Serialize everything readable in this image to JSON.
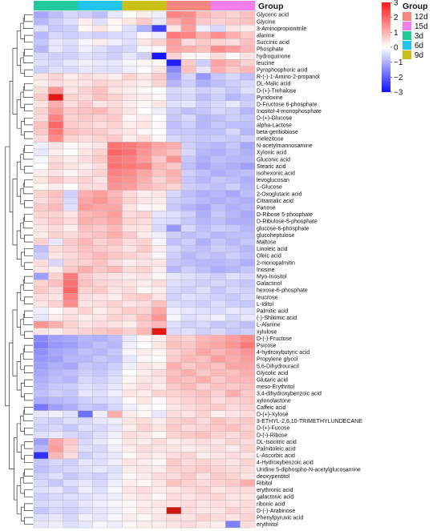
{
  "chart_data": {
    "type": "heatmap",
    "title": "",
    "group_header": "Group",
    "legend_title": "Group",
    "colorbar": {
      "min": -3,
      "max": 3,
      "ticks": [
        3,
        2,
        1,
        0,
        -1,
        -2,
        -3
      ],
      "low_color": "#1010ff",
      "mid_color": "#ffffff",
      "high_color": "#ff1a1a"
    },
    "groups": [
      {
        "name": "3d",
        "color": "#22c99a",
        "columns": 3
      },
      {
        "name": "6d",
        "color": "#22c3ee",
        "columns": 3
      },
      {
        "name": "9d",
        "color": "#c9c11a",
        "columns": 3
      },
      {
        "name": "12d",
        "color": "#f5877f",
        "columns": 3
      },
      {
        "name": "15d",
        "color": "#f47fea",
        "columns": 3
      }
    ],
    "legend_order": [
      "12d",
      "15d",
      "3d",
      "6d",
      "9d"
    ],
    "rows": [
      "Glyceric acid",
      "Glycine",
      "3-Aminopropionitrile",
      "alanine",
      "Succinic acid",
      "Phosphate",
      "hydroquinone",
      "leucine",
      "Pyrophosphoric acid",
      "R-(-)-1-Amino-2-propanol",
      "DL-Malic acid",
      "D-(+)-Trehalose",
      "Pyridoxine",
      "D-Fructose 6-phosphate",
      "Inositol-4-monophosphate",
      "D-(+)-Glucose",
      "alpha-Lactose",
      "beta-gentiobiose",
      "melezitose",
      "N-acetylmannosamine",
      "Xylonic acid",
      "Gluconic acid",
      "Stearic acid",
      "isohexonic acid",
      "levoglucosan",
      "L-Glucose",
      "2-Oxoglutaric acid",
      "Citramalic acid",
      "Panose",
      "D-Ribose 5-phosphate",
      "D-Ribulose-5-phosphate",
      "glucose-6-phosphate",
      "glucoheptulose",
      "Maltose",
      "Linoleic acid",
      "Oleic acid",
      "2-monopalmitin",
      "Inosine",
      "Myo-Inositol",
      "Galactinol",
      "hexose-6-phosphate",
      "leucrose",
      "L-Iditol",
      "Palmitic acid",
      "(-)-Shikimic acid",
      "L-Alanine",
      "xylulose",
      "D-(-)-Fructose",
      "Psicose",
      "4-hydroxybutyric acid",
      "Propylene glycol",
      "5,6-Dihydrouracil",
      "Glycolic acid",
      "Glutaric acid",
      "meso-Erythritol",
      "3,4-dihydroxybenzoic acid",
      "xylonolactone",
      "Caffeic acid",
      "D-(+)-Xylose",
      "3-ETHYL-2,6,10-TRIMETHYLUNDECANE",
      "D-(+)-Fucose",
      "D-(-)-Ribose",
      "DL-Isocitric acid",
      "Palmitoleic acid",
      "L-Ascorbic acid",
      "4-Hydroxybenzoic acid",
      "Uridine 5-diphospho-N-acetylglucosamine",
      "deoxypentitol",
      "Ribitol",
      "erythronic acid",
      "galactonic acid",
      "ribonic acid",
      "D-(-)-Arabinose",
      "Phenylpyruvic acid",
      "erythritol"
    ],
    "values": [
      [
        -1.1,
        -0.8,
        -0.5,
        -0.6,
        -0.8,
        -0.3,
        0.0,
        0.2,
        -0.2,
        1.4,
        1.3,
        0.8,
        0.6,
        0.5,
        0.7
      ],
      [
        -0.9,
        -0.6,
        -0.4,
        0.2,
        -0.4,
        0.1,
        0.3,
        0.6,
        -0.3,
        0.9,
        1.2,
        0.6,
        0.5,
        0.6,
        0.7
      ],
      [
        -0.4,
        -0.7,
        -0.6,
        0.1,
        0.3,
        0.1,
        -0.4,
        -1.0,
        -2.4,
        0.3,
        1.1,
        -0.2,
        -0.5,
        0.3,
        0.2
      ],
      [
        -0.9,
        -0.5,
        -0.6,
        -0.5,
        -0.6,
        -0.5,
        -0.4,
        0.1,
        -0.2,
        1.5,
        1.4,
        0.9,
        1.3,
        0.9,
        0.6
      ],
      [
        -0.7,
        -0.3,
        -0.4,
        -0.1,
        0.2,
        -0.2,
        -0.4,
        0.3,
        0.5,
        1.1,
        0.4,
        0.6,
        0.5,
        0.4,
        0.7
      ],
      [
        -0.9,
        -0.3,
        -0.5,
        -0.2,
        -0.4,
        -0.6,
        -0.5,
        -0.1,
        0.1,
        1.0,
        0.9,
        0.7,
        1.3,
        1.1,
        0.8
      ],
      [
        -0.5,
        -0.6,
        -0.6,
        -0.4,
        -0.5,
        -0.6,
        -0.3,
        -0.6,
        -2.9,
        0.5,
        0.1,
        0.1,
        0.4,
        0.0,
        0.3
      ],
      [
        -0.4,
        -0.5,
        -0.3,
        -0.2,
        -0.3,
        -0.3,
        -0.1,
        0.1,
        0.1,
        -2.8,
        0.6,
        -0.6,
        1.0,
        0.8,
        0.5
      ],
      [
        -0.6,
        -0.4,
        -0.5,
        -0.3,
        -0.4,
        -0.4,
        -0.2,
        0.0,
        0.3,
        -1.5,
        0.7,
        -0.3,
        0.9,
        0.6,
        0.8
      ],
      [
        0.3,
        0.5,
        0.2,
        0.4,
        0.3,
        0.2,
        0.5,
        0.3,
        0.6,
        -1.2,
        -0.5,
        -1.3,
        -0.7,
        -0.5,
        -0.8
      ],
      [
        0.2,
        0.4,
        0.3,
        0.3,
        0.5,
        0.4,
        0.3,
        0.2,
        0.5,
        -0.9,
        -0.6,
        -1.0,
        -0.8,
        -0.6,
        -0.5
      ],
      [
        0.4,
        1.2,
        0.3,
        0.5,
        0.7,
        0.3,
        0.2,
        0.1,
        0.0,
        -0.5,
        -0.4,
        -0.6,
        -0.5,
        -0.7,
        -0.4
      ],
      [
        0.6,
        2.6,
        0.5,
        0.4,
        0.7,
        0.5,
        0.3,
        0.2,
        0.1,
        -0.6,
        -0.5,
        -0.8,
        -0.6,
        -0.9,
        -0.7
      ],
      [
        0.3,
        0.9,
        0.4,
        0.6,
        0.3,
        0.4,
        0.2,
        0.1,
        0.3,
        -0.4,
        -0.3,
        -0.6,
        -0.5,
        -0.3,
        -0.6
      ],
      [
        0.5,
        1.1,
        0.6,
        0.7,
        0.8,
        0.5,
        0.3,
        0.0,
        -0.2,
        -0.6,
        -0.8,
        -0.7,
        -0.5,
        -0.6,
        -0.9
      ],
      [
        0.4,
        1.4,
        0.5,
        0.6,
        0.5,
        0.6,
        0.1,
        0.2,
        0.0,
        -0.7,
        -0.5,
        -0.9,
        -0.8,
        -0.6,
        -0.7
      ],
      [
        0.7,
        1.7,
        0.6,
        0.5,
        0.4,
        0.5,
        0.2,
        0.3,
        0.1,
        -0.8,
        -0.6,
        -0.9,
        -0.7,
        -0.8,
        -0.8
      ],
      [
        0.6,
        1.5,
        0.7,
        0.6,
        0.6,
        0.4,
        0.3,
        0.1,
        0.0,
        -0.7,
        -0.7,
        -0.8,
        -0.8,
        -0.5,
        -0.9
      ],
      [
        0.4,
        1.3,
        0.5,
        0.4,
        0.5,
        0.6,
        0.2,
        0.4,
        0.1,
        -0.5,
        -0.6,
        -0.7,
        -0.6,
        -0.7,
        -0.6
      ],
      [
        -0.2,
        0.3,
        0.1,
        0.2,
        0.3,
        1.6,
        1.5,
        1.3,
        1.0,
        0.9,
        -0.6,
        -0.8,
        -0.9,
        -0.7,
        -1.1
      ],
      [
        -0.3,
        0.2,
        0.0,
        0.3,
        0.5,
        1.7,
        1.6,
        1.2,
        0.9,
        0.7,
        -0.5,
        -0.9,
        -1.0,
        -0.8,
        -1.0
      ],
      [
        -0.1,
        0.4,
        0.2,
        0.4,
        0.6,
        1.5,
        1.4,
        1.1,
        0.6,
        1.2,
        -0.7,
        -1.0,
        -0.8,
        -0.9,
        -0.9
      ],
      [
        0.0,
        0.5,
        0.3,
        0.2,
        0.4,
        1.6,
        1.5,
        1.4,
        0.8,
        0.6,
        -0.8,
        -1.1,
        -0.9,
        -1.0,
        -1.2
      ],
      [
        0.2,
        0.3,
        0.1,
        0.3,
        0.5,
        1.4,
        1.3,
        1.0,
        0.7,
        0.9,
        -0.6,
        -0.8,
        -1.0,
        -0.9,
        -0.8
      ],
      [
        0.3,
        0.6,
        0.4,
        0.5,
        0.3,
        1.3,
        1.2,
        0.9,
        0.5,
        0.8,
        -0.7,
        -0.9,
        -0.7,
        -0.8,
        -1.0
      ],
      [
        0.1,
        0.2,
        0.0,
        0.4,
        0.4,
        1.2,
        1.1,
        0.8,
        0.6,
        0.5,
        -0.6,
        -0.7,
        -0.8,
        -0.6,
        -0.9
      ],
      [
        0.5,
        0.7,
        -0.6,
        0.9,
        1.1,
        0.8,
        0.4,
        0.2,
        0.3,
        -0.5,
        -0.8,
        -1.0,
        -0.9,
        -1.1,
        -0.8
      ],
      [
        0.4,
        0.6,
        -0.5,
        1.0,
        1.2,
        0.9,
        0.5,
        0.3,
        0.2,
        -0.6,
        -0.7,
        -0.9,
        -1.0,
        -0.9,
        -1.0
      ],
      [
        0.6,
        0.8,
        -0.4,
        1.1,
        1.0,
        1.0,
        0.3,
        0.1,
        0.1,
        -0.7,
        -0.9,
        -1.1,
        -0.8,
        -1.0,
        -0.9
      ],
      [
        0.5,
        0.5,
        0.3,
        0.8,
        0.9,
        1.1,
        0.4,
        0.5,
        -0.3,
        -0.4,
        -0.6,
        -1.0,
        -0.7,
        -0.9,
        -1.1
      ],
      [
        0.4,
        0.6,
        0.4,
        0.9,
        0.8,
        1.0,
        0.5,
        0.4,
        -0.4,
        -0.5,
        -0.7,
        -0.9,
        -0.8,
        -1.0,
        -1.0
      ],
      [
        0.3,
        0.4,
        0.2,
        0.7,
        0.6,
        0.8,
        0.3,
        0.3,
        -0.5,
        -1.3,
        -0.5,
        -0.8,
        -0.6,
        -0.7,
        -0.9
      ],
      [
        0.2,
        0.5,
        0.4,
        0.6,
        0.7,
        0.9,
        0.6,
        0.2,
        -0.2,
        -0.6,
        -0.8,
        -0.7,
        -0.9,
        -0.8,
        -0.8
      ],
      [
        0.5,
        -0.3,
        0.6,
        0.8,
        0.5,
        0.7,
        0.4,
        0.5,
        -0.1,
        -0.8,
        -0.6,
        -1.0,
        -0.7,
        -0.9,
        -0.7
      ],
      [
        -0.8,
        0.4,
        0.5,
        0.7,
        0.6,
        0.5,
        0.3,
        0.6,
        0.2,
        -0.5,
        -0.7,
        -0.8,
        -0.6,
        -0.7,
        -0.9
      ],
      [
        -0.6,
        0.3,
        0.4,
        0.6,
        0.8,
        0.6,
        0.5,
        0.4,
        0.1,
        -0.6,
        -0.9,
        -0.7,
        -0.8,
        -0.6,
        -0.8
      ],
      [
        0.4,
        -0.5,
        0.5,
        0.5,
        0.7,
        0.4,
        0.2,
        0.3,
        0.3,
        -0.7,
        -0.8,
        -0.9,
        -0.9,
        -0.8,
        -1.0
      ],
      [
        0.3,
        0.2,
        0.6,
        0.9,
        0.6,
        0.8,
        0.4,
        0.5,
        0.2,
        -0.9,
        -0.6,
        -0.8,
        -1.0,
        -0.9,
        -0.7
      ],
      [
        -1.2,
        0.5,
        1.5,
        0.6,
        0.4,
        0.3,
        0.2,
        0.3,
        0.1,
        -0.3,
        -0.4,
        -0.5,
        -0.6,
        -0.4,
        -0.5
      ],
      [
        0.5,
        0.7,
        1.6,
        0.7,
        0.5,
        0.4,
        0.3,
        0.2,
        0.4,
        -0.4,
        -0.5,
        -0.6,
        -0.5,
        -0.6,
        -0.7
      ],
      [
        0.6,
        0.4,
        1.7,
        0.5,
        0.6,
        0.3,
        0.4,
        0.1,
        0.2,
        -0.5,
        -0.6,
        -0.4,
        -0.7,
        -0.5,
        -0.6
      ],
      [
        0.4,
        0.3,
        1.4,
        0.4,
        0.3,
        0.2,
        0.5,
        0.6,
        0.3,
        -0.6,
        -0.4,
        -0.5,
        -0.6,
        -0.7,
        -0.5
      ],
      [
        0.3,
        0.5,
        1.3,
        0.3,
        0.4,
        0.5,
        0.3,
        0.4,
        0.7,
        -0.4,
        -0.5,
        -0.6,
        -0.4,
        -0.6,
        -0.7
      ],
      [
        -0.2,
        0.1,
        0.3,
        0.5,
        0.2,
        0.4,
        0.6,
        0.5,
        1.0,
        -0.2,
        -0.3,
        -0.4,
        -0.5,
        -0.3,
        -0.4
      ],
      [
        -0.3,
        0.2,
        0.4,
        0.2,
        0.3,
        0.5,
        0.4,
        0.7,
        1.2,
        -0.1,
        -0.4,
        -0.3,
        -0.2,
        -0.5,
        -0.3
      ],
      [
        1.2,
        0.9,
        0.5,
        0.3,
        0.4,
        0.3,
        0.2,
        0.6,
        0.8,
        -0.4,
        -0.6,
        -0.5,
        -0.7,
        -0.6,
        -0.8
      ],
      [
        0.3,
        0.2,
        0.4,
        0.5,
        0.6,
        0.7,
        0.5,
        0.8,
        2.6,
        -0.5,
        -0.4,
        -0.6,
        -0.5,
        -0.7,
        -0.6
      ],
      [
        -1.5,
        -1.2,
        -1.1,
        -0.9,
        -1.0,
        -0.8,
        -0.3,
        0.1,
        0.2,
        0.6,
        0.5,
        0.8,
        0.9,
        1.1,
        1.3
      ],
      [
        -1.6,
        -1.3,
        -1.2,
        -1.0,
        -0.8,
        -0.9,
        -0.2,
        0.0,
        0.3,
        0.7,
        0.6,
        0.9,
        1.0,
        1.2,
        1.5
      ],
      [
        -1.4,
        -1.1,
        -1.0,
        -0.8,
        -0.9,
        -0.7,
        -0.1,
        0.2,
        0.1,
        0.5,
        0.7,
        1.0,
        0.8,
        1.0,
        1.2
      ],
      [
        -1.3,
        -1.2,
        -0.9,
        -0.9,
        -0.7,
        -0.8,
        -0.3,
        0.1,
        0.0,
        0.6,
        0.8,
        0.7,
        1.1,
        0.9,
        1.1
      ],
      [
        -1.2,
        -1.0,
        -1.1,
        -0.7,
        -0.8,
        -0.6,
        -0.2,
        0.3,
        0.2,
        0.9,
        0.6,
        0.8,
        0.7,
        1.0,
        1.0
      ],
      [
        -1.1,
        -0.9,
        -0.8,
        -0.6,
        -0.7,
        -0.5,
        0.0,
        0.2,
        0.4,
        0.7,
        0.9,
        0.6,
        0.8,
        0.7,
        0.9
      ],
      [
        -1.0,
        -0.8,
        -0.9,
        -0.5,
        -0.6,
        -0.4,
        0.1,
        0.3,
        0.3,
        0.8,
        0.7,
        0.9,
        0.6,
        0.8,
        0.8
      ],
      [
        -0.9,
        -0.7,
        -0.6,
        -0.4,
        -0.5,
        -0.3,
        0.2,
        0.4,
        0.2,
        0.6,
        0.8,
        0.5,
        0.7,
        0.6,
        0.7
      ],
      [
        -0.8,
        -0.6,
        -0.7,
        -0.3,
        -0.4,
        -0.2,
        0.3,
        0.2,
        0.5,
        0.5,
        0.6,
        0.7,
        0.5,
        0.9,
        0.6
      ],
      [
        -1.0,
        -0.9,
        -0.8,
        -0.6,
        -0.5,
        -0.4,
        0.1,
        0.3,
        0.1,
        0.4,
        0.5,
        0.6,
        0.4,
        0.5,
        0.6
      ],
      [
        -1.7,
        -1.2,
        -1.0,
        -0.7,
        -0.8,
        -0.5,
        -0.2,
        0.1,
        0.0,
        0.3,
        0.4,
        0.5,
        0.6,
        0.4,
        0.5
      ],
      [
        -0.3,
        -0.2,
        -0.4,
        -1.8,
        -0.2,
        0.9,
        0.2,
        0.1,
        -0.3,
        0.4,
        0.3,
        0.5,
        0.2,
        0.3,
        0.4
      ],
      [
        -0.5,
        -0.6,
        -0.4,
        -0.5,
        -0.3,
        -0.2,
        0.3,
        0.4,
        0.2,
        0.5,
        0.6,
        0.4,
        0.7,
        0.5,
        0.6
      ],
      [
        -0.6,
        -0.5,
        -0.7,
        -0.4,
        -0.5,
        -0.3,
        0.2,
        0.5,
        0.3,
        0.6,
        0.4,
        0.5,
        0.6,
        0.7,
        0.5
      ],
      [
        -0.4,
        -0.3,
        -0.5,
        -0.6,
        -0.4,
        -0.2,
        0.4,
        0.3,
        0.1,
        0.5,
        0.6,
        0.7,
        0.5,
        0.4,
        0.6
      ],
      [
        -1.2,
        1.0,
        0.6,
        -0.5,
        -0.3,
        -0.1,
        0.3,
        0.2,
        0.4,
        0.2,
        0.3,
        0.4,
        0.3,
        0.5,
        0.4
      ],
      [
        -0.9,
        1.1,
        0.5,
        -0.4,
        -0.5,
        -0.2,
        0.2,
        0.4,
        0.3,
        0.3,
        0.2,
        0.3,
        0.4,
        0.2,
        0.5
      ],
      [
        -2.6,
        0.8,
        0.4,
        -0.6,
        -0.4,
        -0.3,
        0.1,
        0.3,
        0.2,
        0.4,
        0.5,
        0.2,
        0.3,
        0.4,
        0.3
      ],
      [
        -0.7,
        -0.5,
        -0.6,
        -0.3,
        -0.4,
        -0.2,
        0.3,
        0.2,
        0.1,
        0.6,
        0.4,
        0.5,
        0.4,
        0.3,
        0.5
      ],
      [
        -0.8,
        -0.6,
        -0.5,
        -0.4,
        -0.3,
        -0.4,
        0.2,
        0.3,
        0.2,
        0.5,
        0.5,
        0.6,
        0.5,
        0.4,
        0.4
      ],
      [
        -0.6,
        -0.4,
        -0.7,
        -0.5,
        -0.6,
        -0.3,
        0.1,
        0.2,
        0.4,
        0.4,
        0.6,
        0.3,
        0.6,
        0.5,
        0.3
      ],
      [
        -0.5,
        -0.7,
        -0.4,
        -0.3,
        -0.5,
        -0.2,
        0.2,
        0.1,
        0.3,
        0.7,
        0.5,
        0.4,
        0.5,
        0.6,
        0.9
      ],
      [
        -0.4,
        -0.3,
        -0.6,
        -0.2,
        -0.4,
        -0.1,
        0.3,
        0.4,
        0.2,
        0.3,
        0.4,
        0.5,
        0.3,
        0.4,
        0.4
      ],
      [
        -0.6,
        -0.5,
        -0.4,
        -0.4,
        -0.3,
        -0.2,
        0.2,
        0.3,
        0.1,
        0.4,
        0.3,
        0.4,
        0.5,
        0.3,
        0.3
      ],
      [
        -0.5,
        -0.4,
        -0.5,
        -0.3,
        -0.2,
        -0.1,
        0.1,
        0.2,
        0.3,
        0.3,
        0.4,
        0.3,
        0.4,
        0.3,
        0.4
      ],
      [
        -0.7,
        -0.5,
        -0.6,
        -0.4,
        -0.3,
        -0.2,
        0.1,
        0.3,
        0.2,
        2.8,
        0.4,
        0.3,
        0.3,
        0.5,
        0.4
      ],
      [
        -0.4,
        -0.3,
        -0.5,
        -0.2,
        -0.3,
        -0.1,
        0.2,
        0.1,
        0.3,
        0.4,
        0.3,
        0.5,
        0.4,
        0.3,
        0.5
      ],
      [
        -0.3,
        -0.2,
        -0.4,
        -0.3,
        -0.1,
        -0.2,
        0.1,
        0.2,
        0.2,
        0.3,
        0.4,
        0.3,
        0.2,
        -1.6,
        0.4
      ]
    ]
  }
}
